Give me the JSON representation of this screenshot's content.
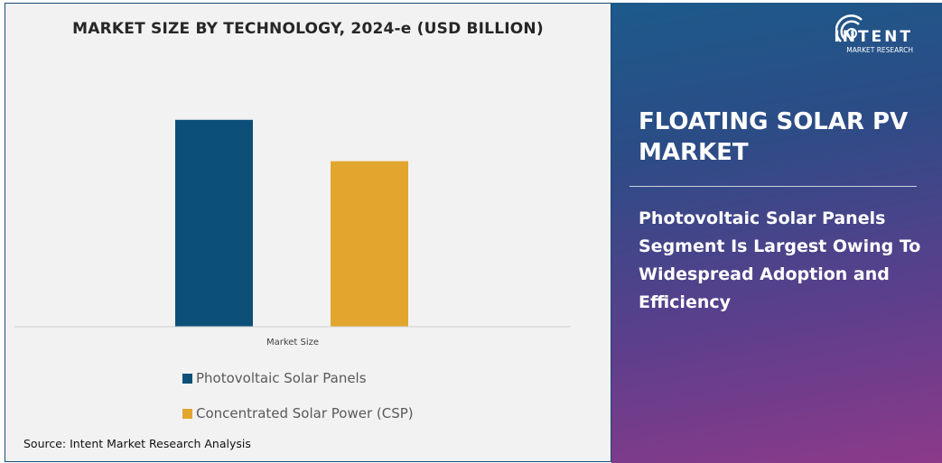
{
  "chart_data": {
    "type": "bar",
    "title": "MARKET SIZE BY TECHNOLOGY, 2024-e (USD BILLION)",
    "categories": [
      "Market Size"
    ],
    "series": [
      {
        "name": "Photovoltaic Solar Panels",
        "values": [
          100
        ],
        "color": "#0c5078"
      },
      {
        "name": "Concentrated Solar Power (CSP)",
        "values": [
          80
        ],
        "color": "#e2a62e"
      }
    ],
    "ylim": [
      0,
      130
    ],
    "grid": false,
    "legend": "bottom",
    "xlabel": "",
    "ylabel": ""
  },
  "source": "Source: Intent Market Research Analysis",
  "panel": {
    "title": "FLOATING SOLAR PV MARKET",
    "text": "Photovoltaic Solar Panels Segment Is Largest Owing To Widespread Adoption and Efficiency"
  },
  "logo": {
    "word": "INTENT",
    "sub": "MARKET RESEARCH"
  }
}
